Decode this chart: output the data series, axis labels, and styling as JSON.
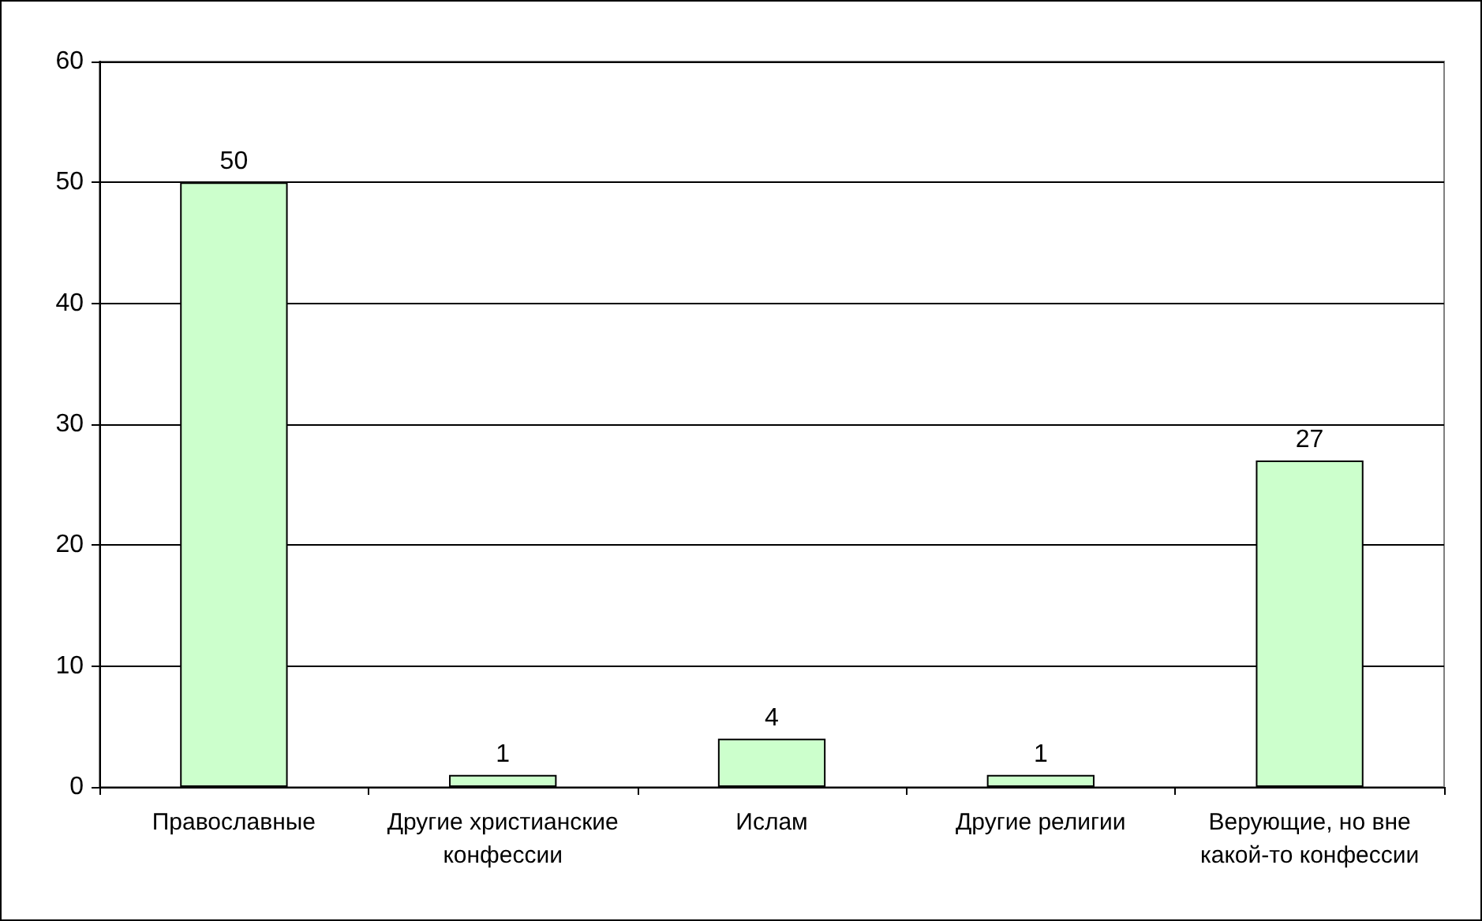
{
  "chart_data": {
    "type": "bar",
    "categories": [
      "Православные",
      "Другие христианские конфессии",
      "Ислам",
      "Другие религии",
      "Верующие, но вне какой-то конфессии"
    ],
    "values": [
      50,
      1,
      4,
      1,
      27
    ],
    "color": "#ccffcc",
    "ylim": [
      0,
      60
    ],
    "yticks": [
      0,
      10,
      20,
      30,
      40,
      50,
      60
    ],
    "grid": "y",
    "data_labels": true
  }
}
